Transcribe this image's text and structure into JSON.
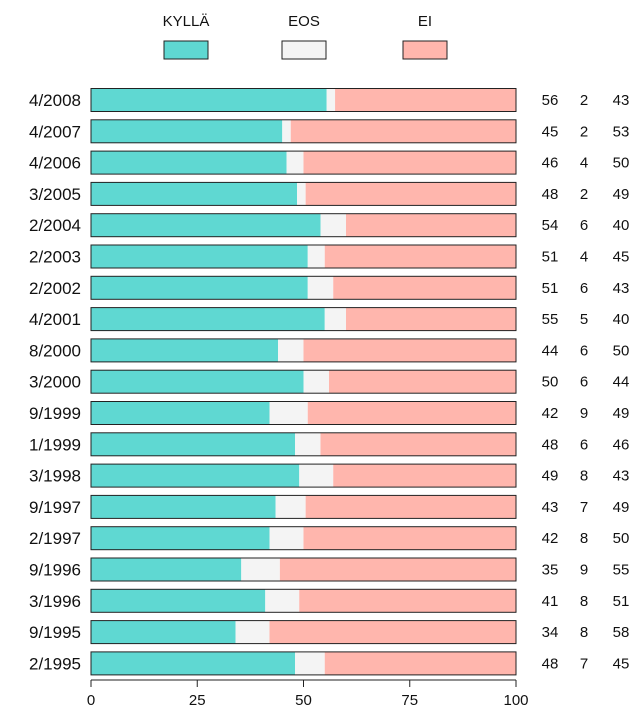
{
  "chart_data": {
    "type": "bar",
    "orientation": "horizontal",
    "stacked": true,
    "categories": [
      "4/2008",
      "4/2007",
      "4/2006",
      "3/2005",
      "2/2004",
      "2/2003",
      "2/2002",
      "4/2001",
      "8/2000",
      "3/2000",
      "9/1999",
      "1/1999",
      "3/1998",
      "9/1997",
      "2/1997",
      "9/1996",
      "3/1996",
      "9/1995",
      "2/1995"
    ],
    "series": [
      {
        "name": "KYLLÄ",
        "color": "#5fd8d2",
        "values": [
          56,
          45,
          46,
          48,
          54,
          51,
          51,
          55,
          44,
          50,
          42,
          48,
          49,
          43,
          42,
          35,
          41,
          34,
          48
        ]
      },
      {
        "name": "EOS",
        "color": "#f4f4f4",
        "values": [
          2,
          2,
          4,
          2,
          6,
          4,
          6,
          5,
          6,
          6,
          9,
          6,
          8,
          7,
          8,
          9,
          8,
          8,
          7
        ]
      },
      {
        "name": "EI",
        "color": "#ffb6ad",
        "values": [
          43,
          53,
          50,
          49,
          40,
          45,
          43,
          40,
          50,
          44,
          49,
          46,
          43,
          49,
          50,
          55,
          51,
          58,
          45
        ]
      }
    ],
    "xlim": [
      0,
      100
    ],
    "xticks": [
      0,
      25,
      50,
      75,
      100
    ],
    "legend_position": "top",
    "grid": false
  }
}
